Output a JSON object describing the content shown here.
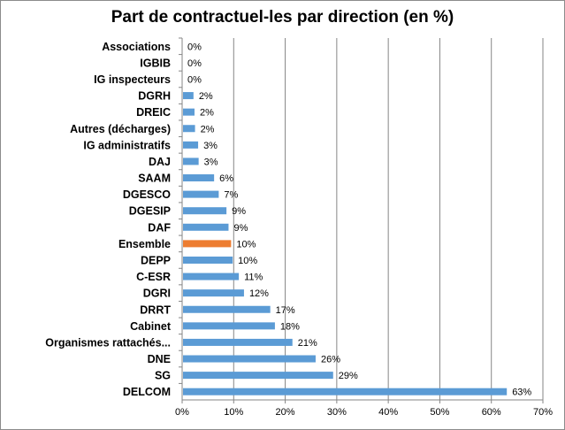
{
  "chart_data": {
    "type": "bar",
    "orientation": "horizontal",
    "title": "Part de contractuel-les par direction (en %)",
    "xlabel": "",
    "ylabel": "",
    "xlim": [
      0,
      70
    ],
    "x_ticks": [
      "0%",
      "10%",
      "20%",
      "30%",
      "40%",
      "50%",
      "60%",
      "70%"
    ],
    "grid": "vertical",
    "legend": "none",
    "categories": [
      "Associations",
      "IGBIB",
      "IG inspecteurs",
      "DGRH",
      "DREIC",
      "Autres (décharges)",
      "IG administratifs",
      "DAJ",
      "SAAM",
      "DGESCO",
      "DGESIP",
      "DAF",
      "Ensemble",
      "DEPP",
      "C-ESR",
      "DGRI",
      "DRRT",
      "Cabinet",
      "Organismes rattachés...",
      "DNE",
      "SG",
      "DELCOM"
    ],
    "values": [
      0,
      0,
      0,
      2.2,
      2.4,
      2.5,
      3.1,
      3.2,
      6.2,
      7.1,
      8.6,
      9.0,
      9.5,
      9.8,
      11.0,
      12.0,
      17.1,
      18.0,
      21.4,
      25.9,
      29.3,
      63.0
    ],
    "labels": [
      "0%",
      "0%",
      "0%",
      "2%",
      "2%",
      "2%",
      "3%",
      "3%",
      "6%",
      "7%",
      "9%",
      "9%",
      "10%",
      "10%",
      "11%",
      "12%",
      "17%",
      "18%",
      "21%",
      "26%",
      "29%",
      "63%"
    ],
    "colors": {
      "default": "#5b9bd5",
      "highlight": "#ed7d31",
      "highlight_category": "Ensemble",
      "grid": "#868686"
    }
  }
}
